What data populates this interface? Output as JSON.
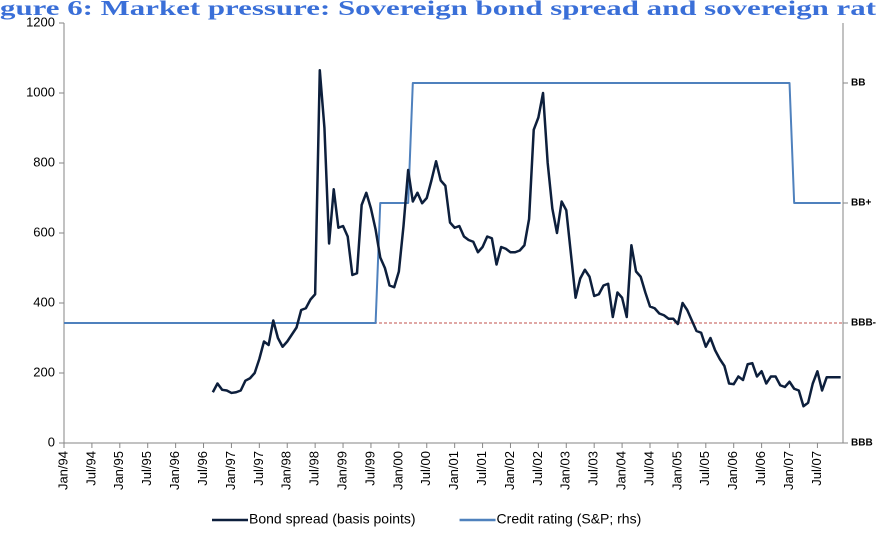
{
  "chart_data": {
    "type": "line",
    "title": "gure 6: Market pressure: Sovereign bond spread and sovereign rat",
    "categories": [
      "Jan/94",
      null,
      null,
      null,
      null,
      null,
      "Jul/94",
      null,
      null,
      null,
      null,
      null,
      "Jan/95",
      null,
      null,
      null,
      null,
      null,
      "Jul/95",
      null,
      null,
      null,
      null,
      null,
      "Jan/96",
      null,
      null,
      null,
      null,
      null,
      "Jul/96",
      null,
      null,
      null,
      null,
      null,
      "Jan/97",
      null,
      null,
      null,
      null,
      null,
      "Jul/97",
      null,
      null,
      null,
      null,
      null,
      "Jan/98",
      null,
      null,
      null,
      null,
      null,
      "Jul/98",
      null,
      null,
      null,
      null,
      null,
      "Jan/99",
      null,
      null,
      null,
      null,
      null,
      "Jul/99",
      null,
      null,
      null,
      null,
      null,
      "Jan/00",
      null,
      null,
      null,
      null,
      null,
      "Jul/00",
      null,
      null,
      null,
      null,
      null,
      "Jan/01",
      null,
      null,
      null,
      null,
      null,
      "Jul/01",
      null,
      null,
      null,
      null,
      null,
      "Jan/02",
      null,
      null,
      null,
      null,
      null,
      "Jul/02",
      null,
      null,
      null,
      null,
      null,
      "Jan/03",
      null,
      null,
      null,
      null,
      null,
      "Jul/03",
      null,
      null,
      null,
      null,
      null,
      "Jan/04",
      null,
      null,
      null,
      null,
      null,
      "Jul/04",
      null,
      null,
      null,
      null,
      null,
      "Jan/05",
      null,
      null,
      null,
      null,
      null,
      "Jul/05",
      null,
      null,
      null,
      null,
      null,
      "Jan/06",
      null,
      null,
      null,
      null,
      null,
      "Jul/06",
      null,
      null,
      null,
      null,
      null,
      "Jan/07",
      null,
      null,
      null,
      null,
      null,
      "Jul/07",
      null,
      null,
      null,
      null,
      null
    ],
    "series": [
      {
        "name": "Bond spread (basis points)",
        "color": "#0d1f3c",
        "values": [
          null,
          null,
          null,
          null,
          null,
          null,
          null,
          null,
          null,
          null,
          null,
          null,
          null,
          null,
          null,
          null,
          null,
          null,
          null,
          null,
          null,
          null,
          null,
          null,
          null,
          null,
          null,
          null,
          null,
          null,
          null,
          null,
          145,
          170,
          152,
          150,
          143,
          145,
          150,
          178,
          185,
          200,
          240,
          290,
          280,
          350,
          300,
          275,
          290,
          310,
          330,
          380,
          385,
          410,
          425,
          1065,
          900,
          570,
          725,
          615,
          620,
          590,
          480,
          485,
          680,
          715,
          670,
          610,
          530,
          500,
          450,
          445,
          490,
          620,
          780,
          690,
          715,
          685,
          700,
          750,
          805,
          750,
          735,
          630,
          615,
          620,
          590,
          580,
          575,
          545,
          560,
          590,
          585,
          510,
          560,
          555,
          545,
          545,
          550,
          565,
          640,
          895,
          930,
          1000,
          800,
          670,
          600,
          690,
          665,
          540,
          415,
          470,
          495,
          475,
          420,
          425,
          450,
          455,
          360,
          430,
          415,
          360,
          565,
          490,
          475,
          430,
          390,
          385,
          370,
          365,
          355,
          355,
          340,
          400,
          380,
          350,
          320,
          315,
          275,
          300,
          265,
          240,
          220,
          170,
          168,
          190,
          180,
          225,
          228,
          190,
          205,
          170,
          190,
          190,
          165,
          160,
          175,
          155,
          150,
          105,
          115,
          170,
          205,
          150,
          188,
          188,
          188,
          188
        ]
      },
      {
        "name": "Credit rating (S&P; rhs)",
        "color": "#4f81bd",
        "axis": "y2",
        "values": [
          1,
          1,
          1,
          1,
          1,
          1,
          1,
          1,
          1,
          1,
          1,
          1,
          1,
          1,
          1,
          1,
          1,
          1,
          1,
          1,
          1,
          1,
          1,
          1,
          1,
          1,
          1,
          1,
          1,
          1,
          1,
          1,
          1,
          1,
          1,
          1,
          1,
          1,
          1,
          1,
          1,
          1,
          1,
          1,
          1,
          1,
          1,
          1,
          1,
          1,
          1,
          1,
          1,
          1,
          1,
          1,
          1,
          1,
          1,
          1,
          1,
          1,
          1,
          1,
          1,
          1,
          1,
          1,
          2,
          2,
          2,
          2,
          2,
          2,
          2,
          3,
          3,
          3,
          3,
          3,
          3,
          3,
          3,
          3,
          3,
          3,
          3,
          3,
          3,
          3,
          3,
          3,
          3,
          3,
          3,
          3,
          3,
          3,
          3,
          3,
          3,
          3,
          3,
          3,
          3,
          3,
          3,
          3,
          3,
          3,
          3,
          3,
          3,
          3,
          3,
          3,
          3,
          3,
          3,
          3,
          3,
          3,
          3,
          3,
          3,
          3,
          3,
          3,
          3,
          3,
          3,
          3,
          3,
          3,
          3,
          3,
          3,
          3,
          3,
          3,
          3,
          3,
          3,
          3,
          3,
          3,
          3,
          3,
          3,
          3,
          3,
          3,
          3,
          3,
          3,
          3,
          3,
          2,
          2,
          2,
          2,
          2,
          2,
          2,
          2,
          2,
          2,
          2
        ]
      }
    ],
    "ylim": [
      0,
      1200
    ],
    "yticks": [
      0,
      200,
      400,
      600,
      800,
      1000,
      1200
    ],
    "y2lim": [
      0,
      3.5
    ],
    "y2ticks": [
      {
        "value": 0,
        "label": "BBB"
      },
      {
        "value": 1,
        "label": "BBB-"
      },
      {
        "value": 2,
        "label": "BB+"
      },
      {
        "value": 3,
        "label": "BB"
      }
    ],
    "reference_line": {
      "value": 1,
      "axis": "y2",
      "color": "#c0504d"
    },
    "legend": "bottom"
  }
}
